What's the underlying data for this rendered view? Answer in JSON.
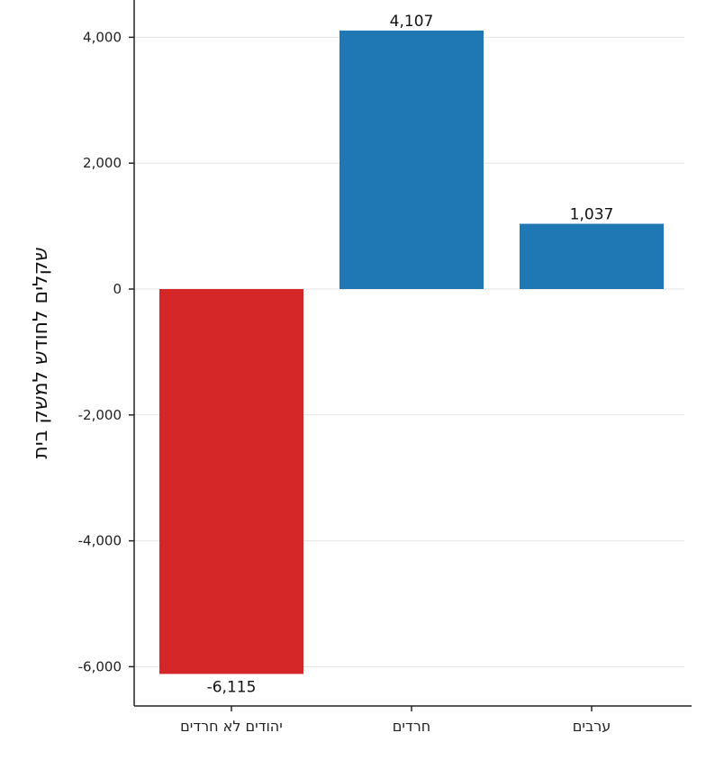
{
  "chart_data": {
    "type": "bar",
    "categories": [
      "יהודים לא חרדים",
      "חרדים",
      "ערבים"
    ],
    "values": [
      -6115,
      4107,
      1037
    ],
    "value_labels": [
      "-6,115",
      "4,107",
      "1,037"
    ],
    "ylabel": "שקלים לחודש למשק בית",
    "ylim": [
      -6600,
      4600
    ],
    "yticks": [
      -6000,
      -4000,
      -2000,
      0,
      2000,
      4000
    ],
    "ytick_labels": [
      "-6,000",
      "-4,000",
      "-2,000",
      "0",
      "2,000",
      "4,000"
    ],
    "grid": true,
    "colors": {
      "negative": "#d62728",
      "positive": "#1f77b4"
    }
  }
}
